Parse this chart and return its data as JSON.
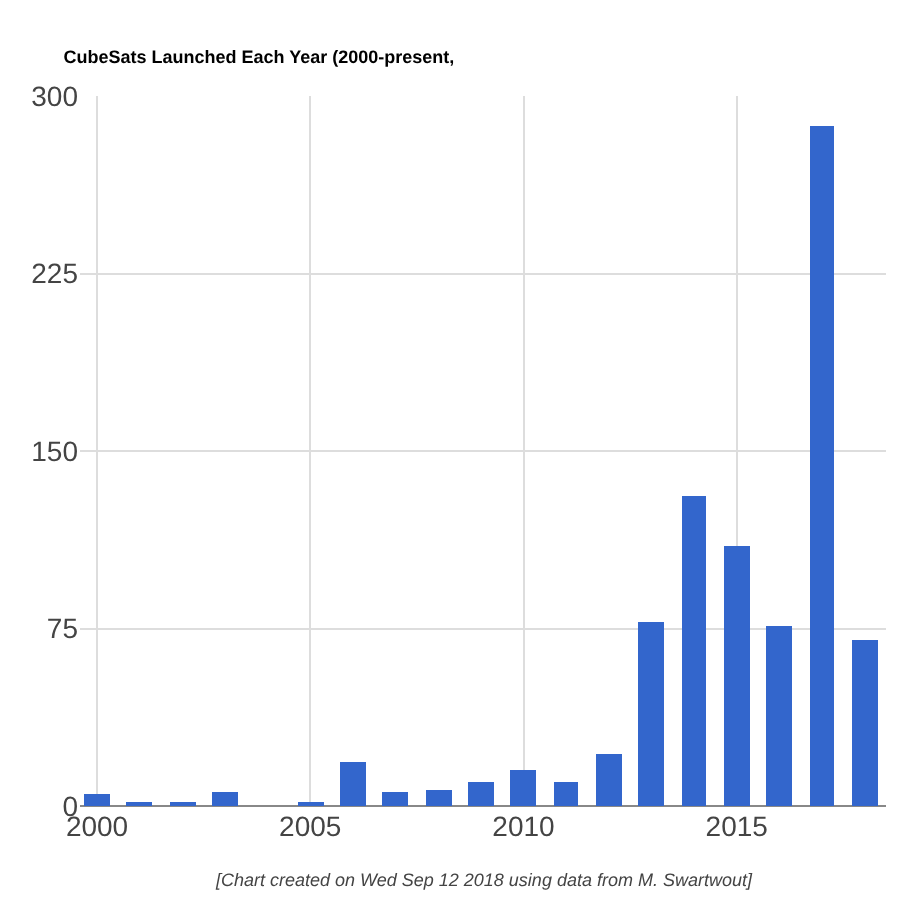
{
  "chart_data": {
    "type": "bar",
    "title": "CubeSats Launched Each Year (2000-present,",
    "x": [
      2000,
      2001,
      2002,
      2003,
      2004,
      2005,
      2006,
      2007,
      2008,
      2009,
      2010,
      2011,
      2012,
      2013,
      2014,
      2015,
      2016,
      2017,
      2018
    ],
    "values": [
      5,
      1,
      1,
      6,
      0,
      2,
      19,
      6,
      7,
      10,
      15,
      10,
      22,
      78,
      131,
      110,
      76,
      287,
      70
    ],
    "color": "#3366cc",
    "xlim": [
      1999.6,
      2018.5
    ],
    "xticks": [
      2000,
      2005,
      2010,
      2015
    ],
    "ylim": [
      0,
      300
    ],
    "yticks": [
      0,
      75,
      150,
      225,
      300
    ],
    "grid": true,
    "annotations": [
      "[Chart created on Wed Sep 12 2018 using data from M. Swartwout]"
    ]
  }
}
